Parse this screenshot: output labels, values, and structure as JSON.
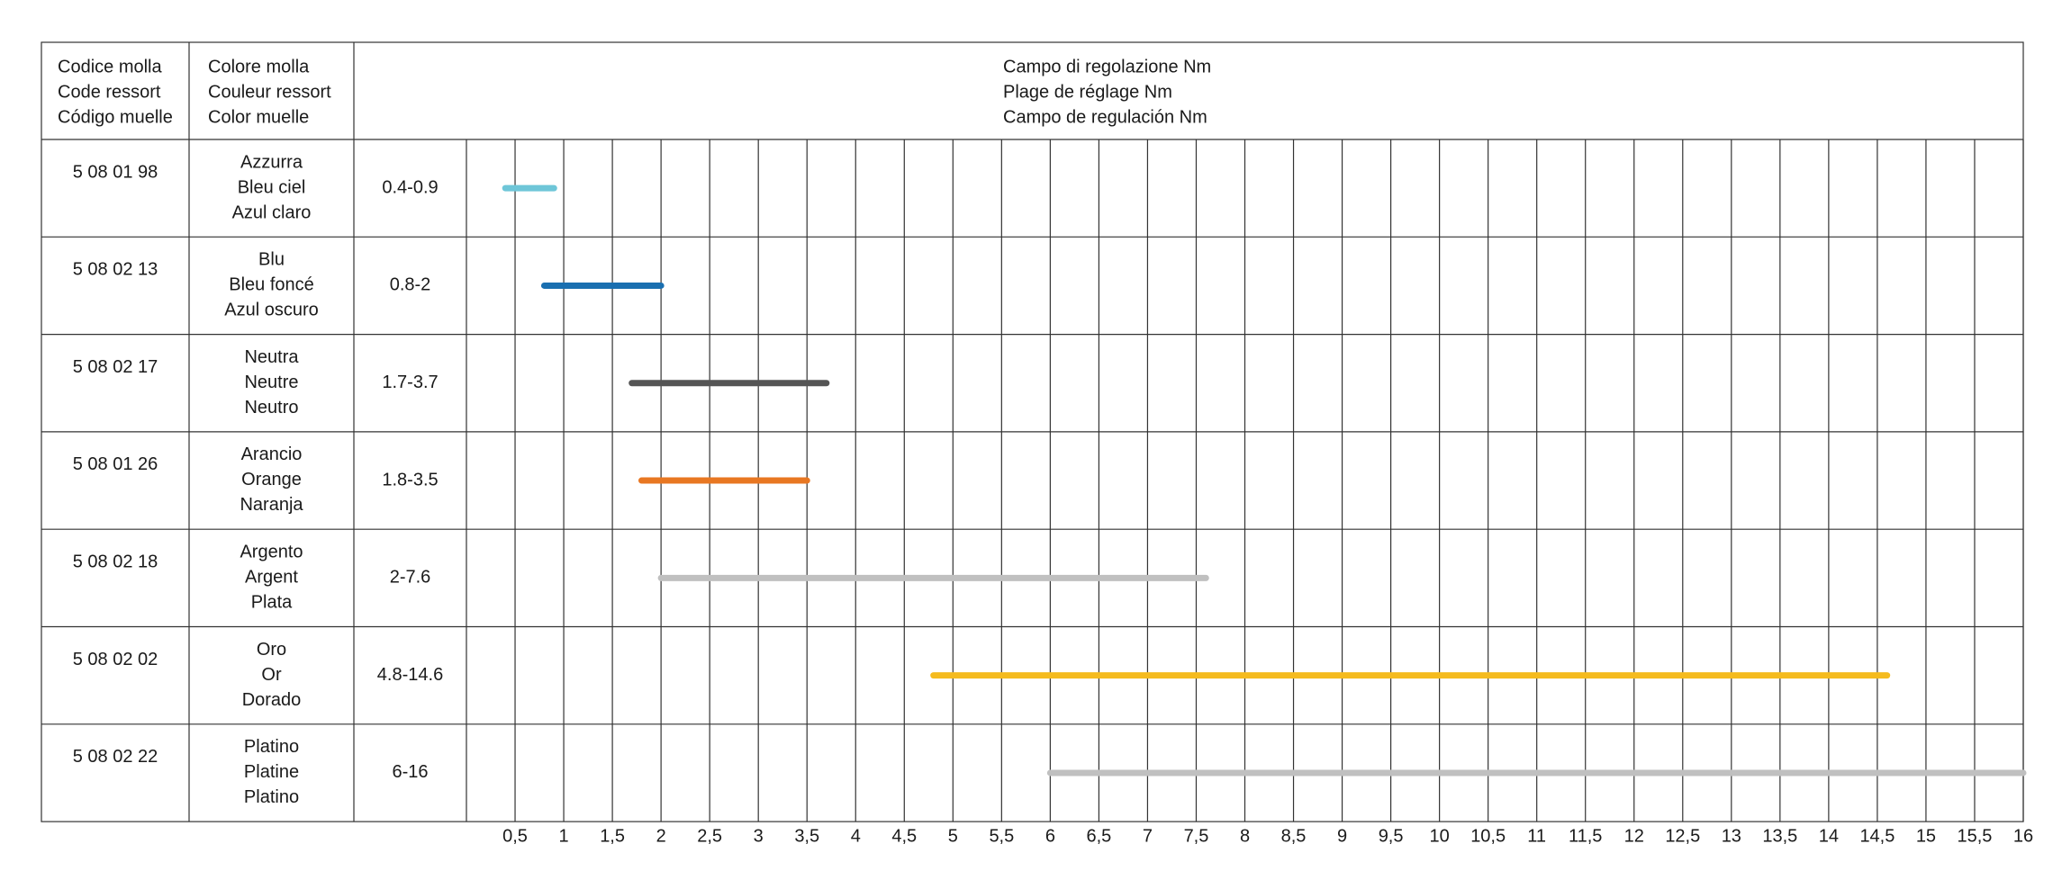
{
  "header": {
    "columns": [
      [
        "Codice molla",
        "Code ressort",
        "Código muelle"
      ],
      [
        "Colore molla",
        "Couleur ressort",
        "Color muelle"
      ],
      [
        "Campo di regolazione Nm",
        "Plage de réglage Nm",
        "Campo de regulación Nm"
      ]
    ]
  },
  "chart_data": {
    "type": "range-bar",
    "xlim": [
      0,
      16
    ],
    "xticks": [
      {
        "value": 0.5,
        "label": "0,5"
      },
      1,
      {
        "value": 1.5,
        "label": "1,5"
      },
      2,
      {
        "value": 2.5,
        "label": "2,5"
      },
      3,
      {
        "value": 3.5,
        "label": "3,5"
      },
      4,
      {
        "value": 4.5,
        "label": "4,5"
      },
      5,
      {
        "value": 5.5,
        "label": "5,5"
      },
      6,
      {
        "value": 6.5,
        "label": "6,5"
      },
      7,
      {
        "value": 7.5,
        "label": "7,5"
      },
      8,
      {
        "value": 8.5,
        "label": "8,5"
      },
      9,
      {
        "value": 9.5,
        "label": "9,5"
      },
      10,
      {
        "value": 10.5,
        "label": "10,5"
      },
      11,
      {
        "value": 11.5,
        "label": "11,5"
      },
      12,
      {
        "value": 12.5,
        "label": "12,5"
      },
      13,
      {
        "value": 13.5,
        "label": "13,5"
      },
      14,
      {
        "value": 14.5,
        "label": "14,5"
      },
      15,
      {
        "value": 15.5,
        "label": "15,5"
      },
      16
    ],
    "rows": [
      {
        "code": "5 08 01 98",
        "color_name": [
          "Azzurra",
          "Bleu ciel",
          "Azul claro"
        ],
        "range_label": "0.4-0.9",
        "range": [
          0.4,
          0.9
        ],
        "color": "#6ec6d8"
      },
      {
        "code": "5 08 02 13",
        "color_name": [
          "Blu",
          "Bleu foncé",
          "Azul oscuro"
        ],
        "range_label": "0.8-2",
        "range": [
          0.8,
          2
        ],
        "color": "#1a6fb0"
      },
      {
        "code": "5 08 02 17",
        "color_name": [
          "Neutra",
          "Neutre",
          "Neutro"
        ],
        "range_label": "1.7-3.7",
        "range": [
          1.7,
          3.7
        ],
        "color": "#555555"
      },
      {
        "code": "5 08 01 26",
        "color_name": [
          "Arancio",
          "Orange",
          "Naranja"
        ],
        "range_label": "1.8-3.5",
        "range": [
          1.8,
          3.5
        ],
        "color": "#e87722"
      },
      {
        "code": "5 08 02 18",
        "color_name": [
          "Argento",
          "Argent",
          "Plata"
        ],
        "range_label": "2-7.6",
        "range": [
          2,
          7.6
        ],
        "color": "#c0c0c0"
      },
      {
        "code": "5 08 02 02",
        "color_name": [
          "Oro",
          "Or",
          "Dorado"
        ],
        "range_label": "4.8-14.6",
        "range": [
          4.8,
          14.6
        ],
        "color": "#f5bb1e"
      },
      {
        "code": "5 08 02 22",
        "color_name": [
          "Platino",
          "Platine",
          "Platino"
        ],
        "range_label": "6-16",
        "range": [
          6,
          16
        ],
        "color": "#c0c0c0"
      }
    ]
  }
}
